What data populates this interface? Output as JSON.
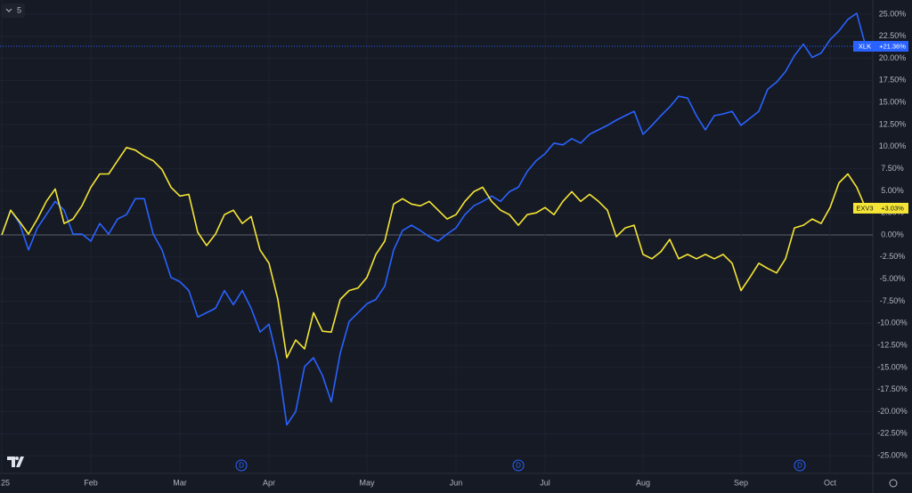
{
  "chart_data": {
    "type": "line",
    "interval": "5",
    "categories": [
      "25",
      null,
      null,
      null,
      null,
      null,
      null,
      null,
      null,
      null,
      "Feb",
      null,
      null,
      null,
      null,
      null,
      null,
      null,
      null,
      null,
      "Mar",
      null,
      null,
      null,
      null,
      null,
      null,
      null,
      null,
      null,
      "Apr",
      null,
      null,
      null,
      null,
      null,
      null,
      null,
      null,
      null,
      null,
      "May",
      null,
      null,
      null,
      null,
      null,
      null,
      null,
      null,
      null,
      "Jun",
      null,
      null,
      null,
      null,
      null,
      null,
      null,
      null,
      null,
      "Jul",
      null,
      null,
      null,
      null,
      null,
      null,
      null,
      null,
      null,
      null,
      "Aug",
      null,
      null,
      null,
      null,
      null,
      null,
      null,
      null,
      null,
      null,
      "Sep",
      null,
      null,
      null,
      null,
      null,
      null,
      null,
      null,
      null,
      "Oct",
      null,
      null,
      null,
      null
    ],
    "series": [
      {
        "name": "XLK",
        "color": "#2962ff",
        "last_value_label": "+21.36%",
        "values": [
          0,
          2.8,
          1.3,
          -1.7,
          0.8,
          2.3,
          3.8,
          2.8,
          0.1,
          0.1,
          -0.7,
          1.3,
          0.1,
          1.8,
          2.3,
          4.1,
          4.1,
          0.1,
          -1.7,
          -4.8,
          -5.3,
          -6.3,
          -9.3,
          -8.8,
          -8.3,
          -6.3,
          -7.9,
          -6.3,
          -8.3,
          -11.0,
          -10.1,
          -14.4,
          -21.5,
          -20.0,
          -14.9,
          -13.9,
          -15.9,
          -18.9,
          -13.4,
          -9.8,
          -8.8,
          -7.8,
          -7.3,
          -5.8,
          -1.7,
          0.5,
          1.1,
          0.5,
          -0.2,
          -0.7,
          0.1,
          0.8,
          2.3,
          3.3,
          3.8,
          4.4,
          3.8,
          4.9,
          5.4,
          7.2,
          8.4,
          9.2,
          10.4,
          10.2,
          10.9,
          10.4,
          11.4,
          11.9,
          12.4,
          13.0,
          13.5,
          14.0,
          11.4,
          12.4,
          13.5,
          14.5,
          15.7,
          15.5,
          13.5,
          11.9,
          13.5,
          13.7,
          14.0,
          12.4,
          13.2,
          14.0,
          16.5,
          17.3,
          18.5,
          20.3,
          21.6,
          20.1,
          20.6,
          22.1,
          23.1,
          24.4,
          25.1,
          21.36
        ]
      },
      {
        "name": "EXV3",
        "color": "#f5e535",
        "last_value_label": "+3.03%",
        "values": [
          0,
          2.8,
          1.5,
          0.1,
          1.8,
          3.8,
          5.2,
          1.3,
          1.8,
          3.3,
          5.4,
          6.9,
          6.9,
          8.4,
          9.9,
          9.6,
          8.9,
          8.4,
          7.4,
          5.4,
          4.4,
          4.6,
          0.3,
          -1.2,
          0.1,
          2.3,
          2.8,
          1.3,
          2.1,
          -1.7,
          -3.2,
          -7.3,
          -13.9,
          -11.9,
          -12.9,
          -8.8,
          -10.9,
          -11.0,
          -7.3,
          -6.3,
          -6.0,
          -4.8,
          -2.2,
          -0.7,
          3.5,
          4.1,
          3.5,
          3.3,
          3.8,
          2.8,
          1.8,
          2.3,
          3.8,
          4.9,
          5.4,
          3.8,
          2.8,
          2.3,
          1.1,
          2.3,
          2.5,
          3.1,
          2.3,
          3.8,
          4.9,
          3.8,
          4.6,
          3.8,
          2.8,
          -0.2,
          0.8,
          1.1,
          -2.2,
          -2.7,
          -1.9,
          -0.5,
          -2.7,
          -2.2,
          -2.7,
          -2.2,
          -2.7,
          -2.2,
          -3.2,
          -6.3,
          -4.8,
          -3.2,
          -3.8,
          -4.3,
          -2.7,
          0.8,
          1.1,
          1.8,
          1.3,
          3.1,
          5.9,
          6.9,
          5.4,
          3.03
        ]
      }
    ],
    "ylim": [
      -27,
      26.6
    ],
    "yticks": [
      {
        "value": 25,
        "label": "25.00%"
      },
      {
        "value": 22.5,
        "label": "22.50%"
      },
      {
        "value": 20,
        "label": "20.00%"
      },
      {
        "value": 17.5,
        "label": "17.50%"
      },
      {
        "value": 15,
        "label": "15.00%"
      },
      {
        "value": 12.5,
        "label": "12.50%"
      },
      {
        "value": 10,
        "label": "10.00%"
      },
      {
        "value": 7.5,
        "label": "7.50%"
      },
      {
        "value": 5,
        "label": "5.00%"
      },
      {
        "value": 2.5,
        "label": "2.50%"
      },
      {
        "value": 0,
        "label": "0.00%"
      },
      {
        "value": -2.5,
        "label": "-2.50%"
      },
      {
        "value": -5,
        "label": "-5.00%"
      },
      {
        "value": -7.5,
        "label": "-7.50%"
      },
      {
        "value": -10,
        "label": "-10.00%"
      },
      {
        "value": -12.5,
        "label": "-12.50%"
      },
      {
        "value": -15,
        "label": "-15.00%"
      },
      {
        "value": -17.5,
        "label": "-17.50%"
      },
      {
        "value": -20,
        "label": "-20.00%"
      },
      {
        "value": -22.5,
        "label": "-22.50%"
      },
      {
        "value": -25,
        "label": "-25.00%"
      }
    ],
    "grid": true,
    "dividend_markers": [
      "D",
      "D",
      "D"
    ]
  }
}
